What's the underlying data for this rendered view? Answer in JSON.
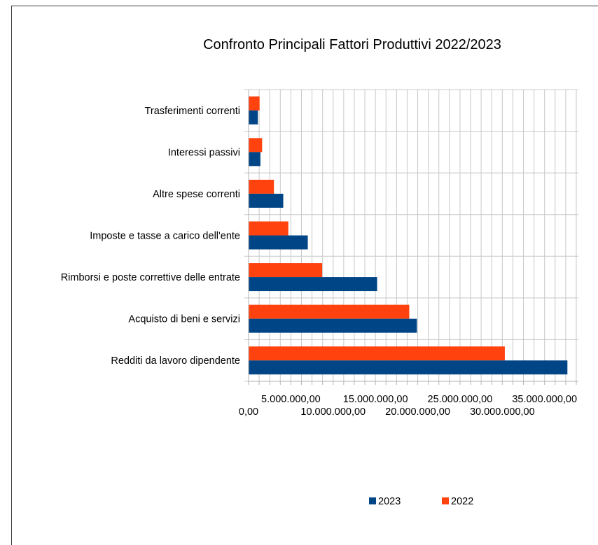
{
  "chart_data": {
    "type": "bar",
    "orientation": "horizontal",
    "title": "Confronto Principali Fattori Produttivi 2022/2023",
    "xlabel": "",
    "ylabel": "",
    "categories": [
      "Trasferimenti correnti",
      "Interessi passivi",
      "Altre spese correnti",
      "Imposte e tasse a carico dell'ente",
      "Rimborsi e poste correttive delle entrate",
      "Acquisto di beni e servizi",
      "Redditi da lavoro dipendente"
    ],
    "series": [
      {
        "name": "2023",
        "color": "#004586",
        "values": [
          1100000,
          1400000,
          4100000,
          7000000,
          15200000,
          19900000,
          37700000
        ]
      },
      {
        "name": "2022",
        "color": "#ff420e",
        "values": [
          1300000,
          1600000,
          3000000,
          4700000,
          8700000,
          19000000,
          30300000
        ]
      }
    ],
    "xlim": [
      0,
      39000000
    ],
    "xticks": [
      0,
      5000000,
      10000000,
      15000000,
      20000000,
      25000000,
      30000000,
      35000000
    ],
    "xtick_labels": [
      "0,00",
      "5.000.000,00",
      "10.000.000,00",
      "15.000.000,00",
      "20.000.000,00",
      "25.000.000,00",
      "30.000.000,00",
      "35.000.000,00"
    ],
    "grid": true,
    "legend_position": "bottom"
  }
}
